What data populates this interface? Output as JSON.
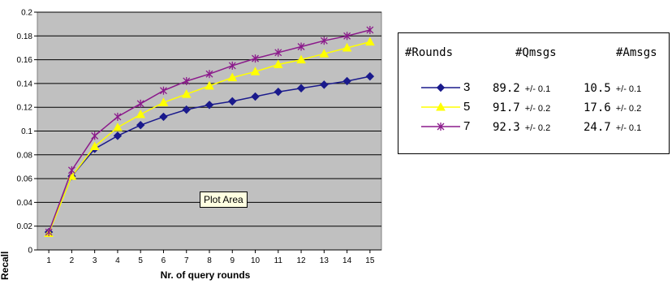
{
  "chart_data": {
    "type": "line",
    "title": "",
    "xlabel": "Nr. of query rounds",
    "ylabel": "Recall",
    "x": [
      1,
      2,
      3,
      4,
      5,
      6,
      7,
      8,
      9,
      10,
      11,
      12,
      13,
      14,
      15
    ],
    "ylim": [
      0,
      0.2
    ],
    "yticks": [
      "0",
      "0.02",
      "0.04",
      "0.06",
      "0.08",
      "0.1",
      "0.12",
      "0.14",
      "0.16",
      "0.18",
      "0.2"
    ],
    "grid": true,
    "legend_placement": "right",
    "series": [
      {
        "name": "3",
        "color": "#1a1a8c",
        "marker": "diamond",
        "values": [
          0.015,
          0.062,
          0.085,
          0.096,
          0.105,
          0.112,
          0.118,
          0.122,
          0.125,
          0.129,
          0.133,
          0.136,
          0.139,
          0.142,
          0.146
        ]
      },
      {
        "name": "5",
        "color": "#ffff00",
        "marker": "triangle",
        "values": [
          0.014,
          0.062,
          0.087,
          0.103,
          0.114,
          0.124,
          0.131,
          0.138,
          0.145,
          0.15,
          0.156,
          0.16,
          0.165,
          0.17,
          0.175
        ]
      },
      {
        "name": "7",
        "color": "#8b1a8b",
        "marker": "star",
        "values": [
          0.015,
          0.067,
          0.096,
          0.112,
          0.123,
          0.134,
          0.142,
          0.148,
          0.155,
          0.161,
          0.166,
          0.171,
          0.176,
          0.18,
          0.185
        ]
      }
    ],
    "plot_background": "#c0c0c0",
    "annotation": "Plot Area"
  },
  "legend": {
    "headers": [
      "#Rounds",
      "#Qmsgs",
      "#Amsgs"
    ],
    "rows": [
      {
        "label": "3",
        "qmsgs": "89.2",
        "qerr": "+/- 0.1",
        "amsgs": "10.5",
        "aerr": "+/- 0.1"
      },
      {
        "label": "5",
        "qmsgs": "91.7",
        "qerr": "+/- 0.2",
        "amsgs": "17.6",
        "aerr": "+/- 0.2"
      },
      {
        "label": "7",
        "qmsgs": "92.3",
        "qerr": "+/- 0.2",
        "amsgs": "24.7",
        "aerr": "+/- 0.1"
      }
    ]
  }
}
